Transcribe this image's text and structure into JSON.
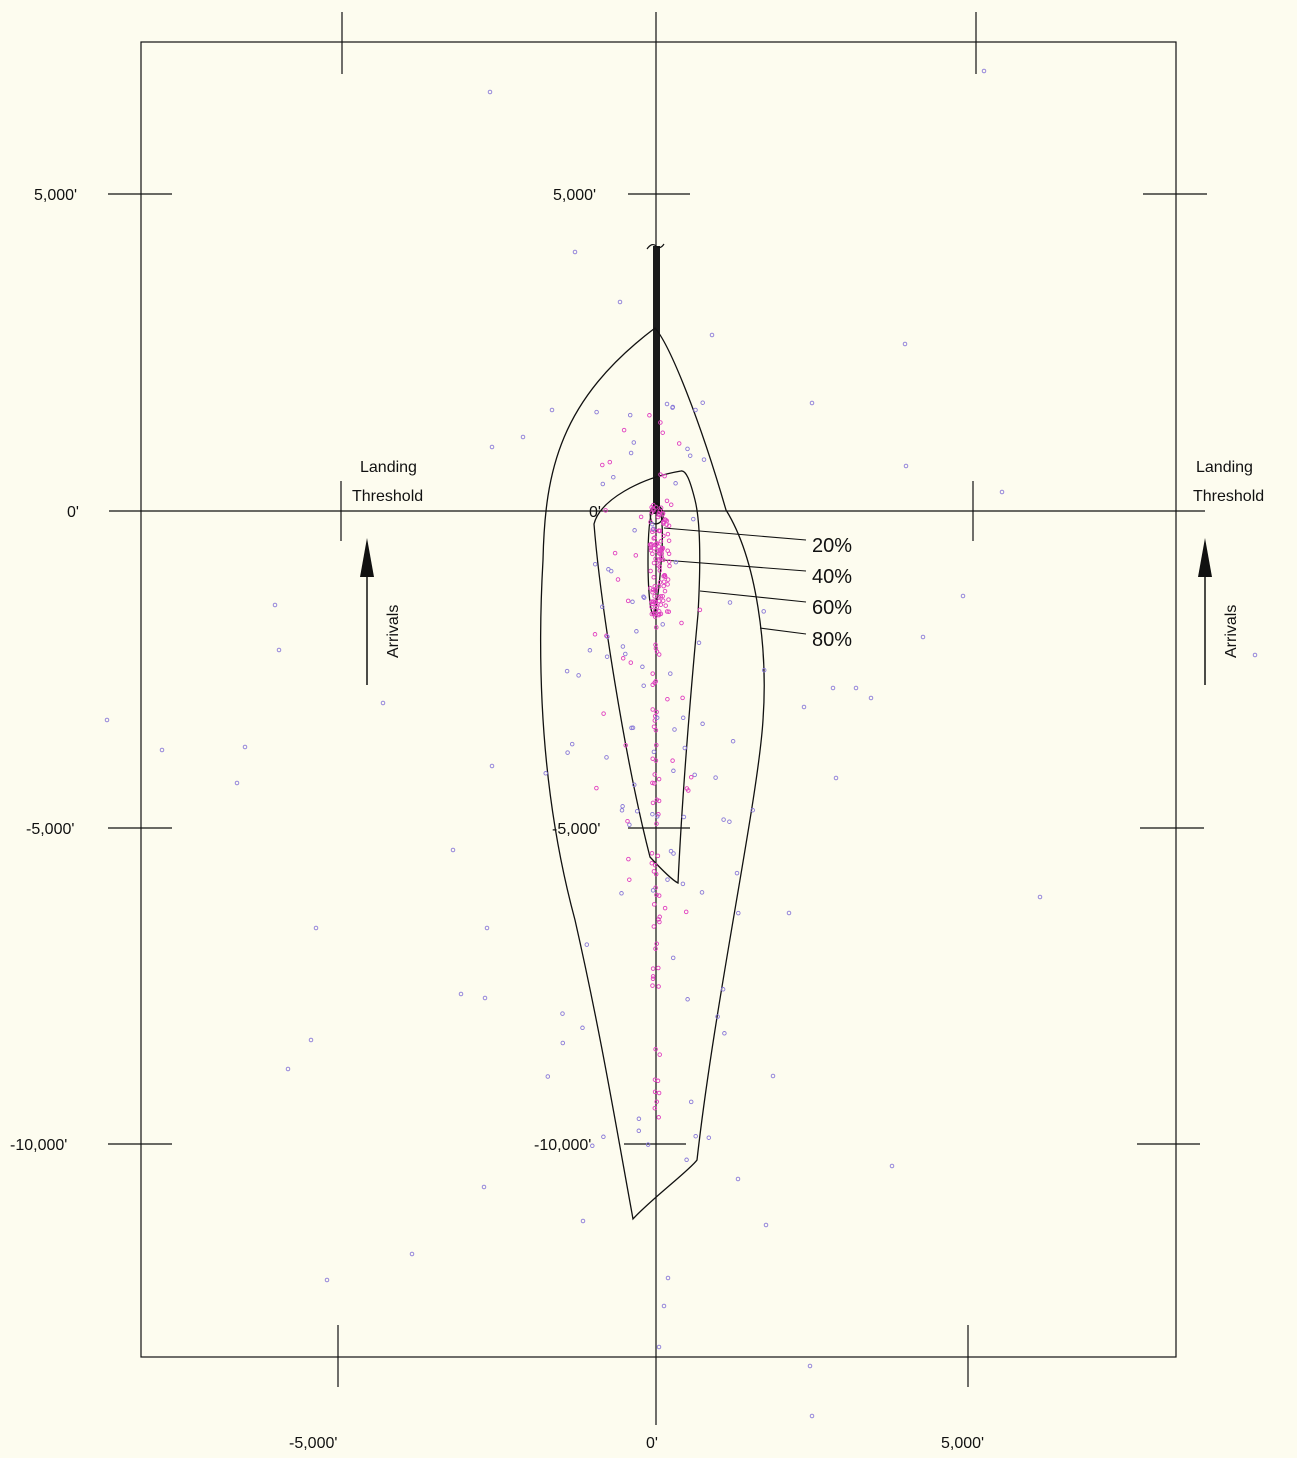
{
  "tick_labels": {
    "left_5000": "5,000'",
    "left_0": "0'",
    "left_m5000": "-5,000'",
    "left_m10000": "-10,000'",
    "center_5000": "5,000'",
    "center_0": "0'",
    "center_m5000": "-5,000'",
    "center_m10000": "-10,000'",
    "bottom_m5000": "-5,000'",
    "bottom_0": "0'",
    "bottom_5000": "5,000'"
  },
  "landing_threshold_left": {
    "line1": "Landing",
    "line2": "Threshold"
  },
  "landing_threshold_right": {
    "line1": "Landing",
    "line2": "Threshold"
  },
  "arrivals_left": "Arrivals",
  "arrivals_right": "Arrivals",
  "contours": [
    {
      "label": "20%"
    },
    {
      "label": "40%"
    },
    {
      "label": "60%"
    },
    {
      "label": "80%"
    }
  ],
  "colors": {
    "background": "#fdfcef",
    "lines": "#111111",
    "points_pink": "#e040c0",
    "points_violet": "#8a7ad8"
  }
}
